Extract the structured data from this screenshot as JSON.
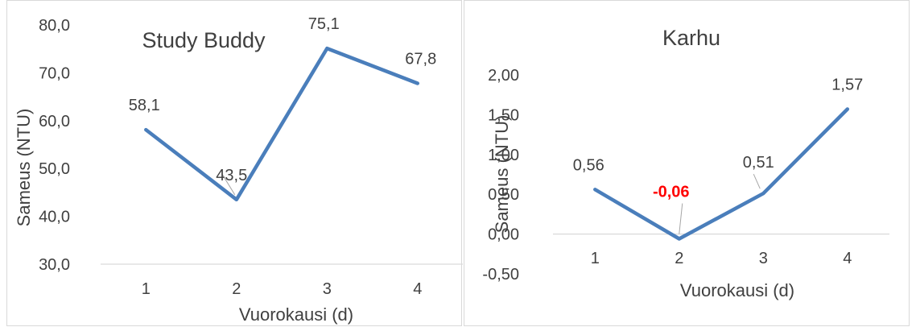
{
  "chart_data": [
    {
      "type": "line",
      "title": "Study Buddy",
      "xlabel": "Vuorokausi (d)",
      "ylabel": "Sameus (NTU)",
      "categories": [
        "1",
        "2",
        "3",
        "4"
      ],
      "values": [
        58.1,
        43.5,
        75.1,
        67.8
      ],
      "data_labels": [
        "58,1",
        "43,5",
        "75,1",
        "67,8"
      ],
      "ylim": [
        30,
        80
      ],
      "yticks": [
        30,
        40,
        50,
        60,
        70,
        80
      ],
      "ytick_labels": [
        "30,0",
        "40,0",
        "50,0",
        "60,0",
        "70,0",
        "80,0"
      ],
      "grid": false,
      "line_color": "#4a7ebb"
    },
    {
      "type": "line",
      "title": "Karhu",
      "xlabel": "Vuorokausi (d)",
      "ylabel": "Sameus (NTU)",
      "categories": [
        "1",
        "2",
        "3",
        "4"
      ],
      "values": [
        0.56,
        -0.06,
        0.51,
        1.57
      ],
      "data_labels": [
        "0,56",
        "-0,06",
        "0,51",
        "1,57"
      ],
      "highlight_label_index": 1,
      "highlight_color": "#ff0000",
      "ylim": [
        -0.5,
        2.0
      ],
      "yticks": [
        -0.5,
        0.0,
        0.5,
        1.0,
        1.5,
        2.0
      ],
      "ytick_labels": [
        "-0,50",
        "0,00",
        "0,50",
        "1,00",
        "1,50",
        "2,00"
      ],
      "grid": false,
      "line_color": "#4a7ebb"
    }
  ]
}
